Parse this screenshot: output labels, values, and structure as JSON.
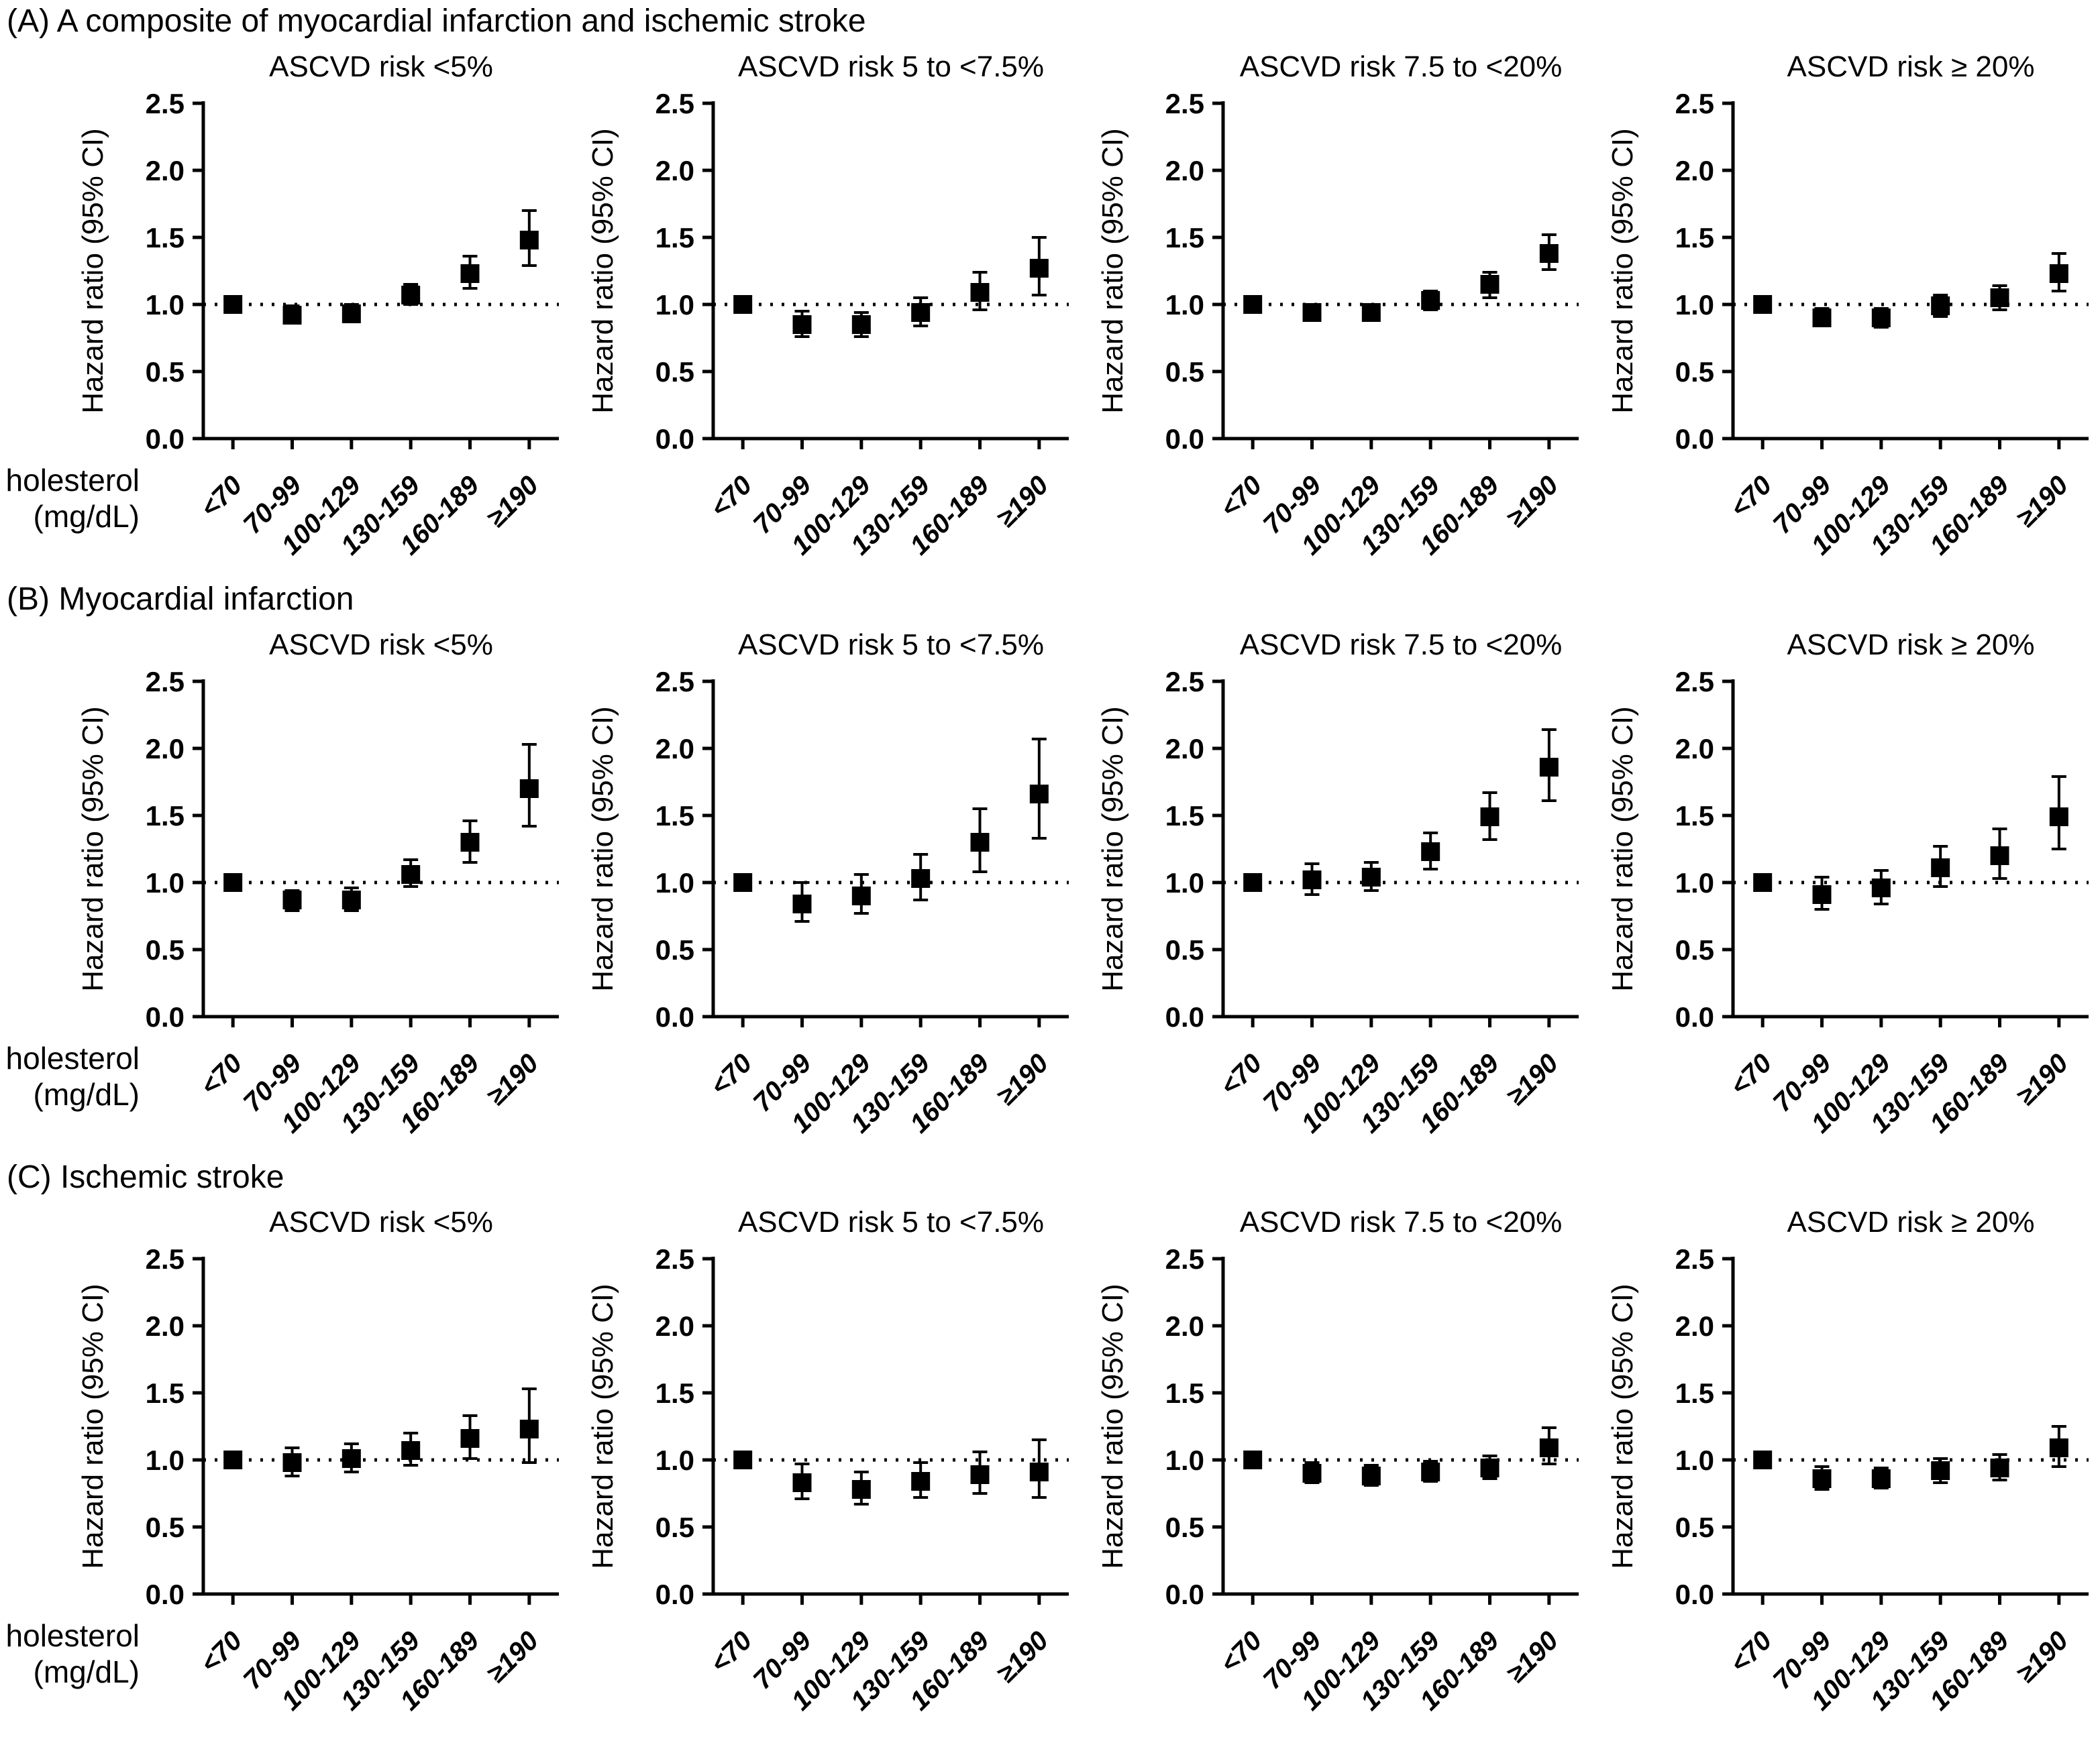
{
  "figure": {
    "sections": [
      {
        "label": "(A) A composite of myocardial infarction and ischemic stroke",
        "panels": [
          0,
          1,
          2,
          3
        ]
      },
      {
        "label": "(B) Myocardial infarction",
        "panels": [
          4,
          5,
          6,
          7
        ]
      },
      {
        "label": "(C) Ischemic stroke",
        "panels": [
          8,
          9,
          10,
          11
        ]
      }
    ]
  },
  "axes": {
    "ylabel": "Hazard ratio (95% CI)",
    "xlabel_line1": "LDL cholesterol",
    "xlabel_line2": "(mg/dL)",
    "categories": [
      "<70",
      "70-99",
      "100-129",
      "130-159",
      "160-189",
      "≥190"
    ],
    "yticks": [
      0,
      0.5,
      1.0,
      1.5,
      2.0,
      2.5
    ],
    "ytick_labels": [
      "0.0",
      "0.5",
      "1.0",
      "1.5",
      "2.0",
      "2.5"
    ],
    "ylim": [
      0,
      2.5
    ],
    "refline": 1.0,
    "marker_color": "#000000"
  },
  "chart_data": [
    {
      "type": "scatter",
      "section": "(A) A composite of myocardial infarction and ischemic stroke",
      "title": "ASCVD risk <5%",
      "categories": [
        "<70",
        "70-99",
        "100-129",
        "130-159",
        "160-189",
        "≥190"
      ],
      "hr": [
        1.0,
        0.92,
        0.93,
        1.07,
        1.23,
        1.48
      ],
      "ci_low": [
        1.0,
        0.86,
        0.87,
        1.0,
        1.12,
        1.29
      ],
      "ci_high": [
        1.0,
        0.99,
        1.0,
        1.15,
        1.36,
        1.7
      ],
      "xlabel": "LDL cholesterol (mg/dL)",
      "ylabel": "Hazard ratio (95% CI)",
      "ylim": [
        0,
        2.5
      ]
    },
    {
      "type": "scatter",
      "section": "(A) A composite of myocardial infarction and ischemic stroke",
      "title": "ASCVD risk 5 to <7.5%",
      "categories": [
        "<70",
        "70-99",
        "100-129",
        "130-159",
        "160-189",
        "≥190"
      ],
      "hr": [
        1.0,
        0.85,
        0.85,
        0.94,
        1.09,
        1.27
      ],
      "ci_low": [
        1.0,
        0.76,
        0.76,
        0.84,
        0.96,
        1.07
      ],
      "ci_high": [
        1.0,
        0.95,
        0.94,
        1.05,
        1.24,
        1.5
      ],
      "xlabel": "LDL cholesterol (mg/dL)",
      "ylabel": "Hazard ratio (95% CI)",
      "ylim": [
        0,
        2.5
      ]
    },
    {
      "type": "scatter",
      "section": "(A) A composite of myocardial infarction and ischemic stroke",
      "title": "ASCVD risk 7.5 to <20%",
      "categories": [
        "<70",
        "70-99",
        "100-129",
        "130-159",
        "160-189",
        "≥190"
      ],
      "hr": [
        1.0,
        0.94,
        0.94,
        1.03,
        1.15,
        1.38
      ],
      "ci_low": [
        1.0,
        0.88,
        0.88,
        0.96,
        1.05,
        1.26
      ],
      "ci_high": [
        1.0,
        1.0,
        1.0,
        1.1,
        1.24,
        1.52
      ],
      "xlabel": "LDL cholesterol (mg/dL)",
      "ylabel": "Hazard ratio (95% CI)",
      "ylim": [
        0,
        2.5
      ]
    },
    {
      "type": "scatter",
      "section": "(A) A composite of myocardial infarction and ischemic stroke",
      "title": "ASCVD risk ≥ 20%",
      "categories": [
        "<70",
        "70-99",
        "100-129",
        "130-159",
        "160-189",
        "≥190"
      ],
      "hr": [
        1.0,
        0.9,
        0.9,
        0.99,
        1.05,
        1.23
      ],
      "ci_low": [
        1.0,
        0.84,
        0.83,
        0.91,
        0.96,
        1.1
      ],
      "ci_high": [
        1.0,
        0.97,
        0.97,
        1.07,
        1.14,
        1.38
      ],
      "xlabel": "LDL cholesterol (mg/dL)",
      "ylabel": "Hazard ratio (95% CI)",
      "ylim": [
        0,
        2.5
      ]
    },
    {
      "type": "scatter",
      "section": "(B) Myocardial infarction",
      "title": "ASCVD risk <5%",
      "categories": [
        "<70",
        "70-99",
        "100-129",
        "130-159",
        "160-189",
        "≥190"
      ],
      "hr": [
        1.0,
        0.87,
        0.87,
        1.06,
        1.3,
        1.7
      ],
      "ci_low": [
        1.0,
        0.79,
        0.79,
        0.97,
        1.15,
        1.42
      ],
      "ci_high": [
        1.0,
        0.94,
        0.96,
        1.17,
        1.46,
        2.03
      ],
      "xlabel": "LDL cholesterol (mg/dL)",
      "ylabel": "Hazard ratio (95% CI)",
      "ylim": [
        0,
        2.5
      ]
    },
    {
      "type": "scatter",
      "section": "(B) Myocardial infarction",
      "title": "ASCVD risk 5 to <7.5%",
      "categories": [
        "<70",
        "70-99",
        "100-129",
        "130-159",
        "160-189",
        "≥190"
      ],
      "hr": [
        1.0,
        0.84,
        0.9,
        1.03,
        1.3,
        1.66
      ],
      "ci_low": [
        1.0,
        0.71,
        0.77,
        0.87,
        1.08,
        1.33
      ],
      "ci_high": [
        1.0,
        1.0,
        1.06,
        1.21,
        1.55,
        2.07
      ],
      "xlabel": "LDL cholesterol (mg/dL)",
      "ylabel": "Hazard ratio (95% CI)",
      "ylim": [
        0,
        2.5
      ]
    },
    {
      "type": "scatter",
      "section": "(B) Myocardial infarction",
      "title": "ASCVD risk 7.5 to <20%",
      "categories": [
        "<70",
        "70-99",
        "100-129",
        "130-159",
        "160-189",
        "≥190"
      ],
      "hr": [
        1.0,
        1.02,
        1.04,
        1.23,
        1.49,
        1.86
      ],
      "ci_low": [
        1.0,
        0.91,
        0.94,
        1.1,
        1.32,
        1.61
      ],
      "ci_high": [
        1.0,
        1.14,
        1.15,
        1.37,
        1.67,
        2.14
      ],
      "xlabel": "LDL cholesterol (mg/dL)",
      "ylabel": "Hazard ratio (95% CI)",
      "ylim": [
        0,
        2.5
      ]
    },
    {
      "type": "scatter",
      "section": "(B) Myocardial infarction",
      "title": "ASCVD risk ≥ 20%",
      "categories": [
        "<70",
        "70-99",
        "100-129",
        "130-159",
        "160-189",
        "≥190"
      ],
      "hr": [
        1.0,
        0.91,
        0.96,
        1.11,
        1.2,
        1.49
      ],
      "ci_low": [
        1.0,
        0.8,
        0.84,
        0.97,
        1.03,
        1.25
      ],
      "ci_high": [
        1.0,
        1.04,
        1.09,
        1.27,
        1.4,
        1.79
      ],
      "xlabel": "LDL cholesterol (mg/dL)",
      "ylabel": "Hazard ratio (95% CI)",
      "ylim": [
        0,
        2.5
      ]
    },
    {
      "type": "scatter",
      "section": "(C) Ischemic stroke",
      "title": "ASCVD risk <5%",
      "categories": [
        "<70",
        "70-99",
        "100-129",
        "130-159",
        "160-189",
        "≥190"
      ],
      "hr": [
        1.0,
        0.98,
        1.01,
        1.07,
        1.16,
        1.23
      ],
      "ci_low": [
        1.0,
        0.88,
        0.91,
        0.96,
        1.01,
        0.98
      ],
      "ci_high": [
        1.0,
        1.09,
        1.12,
        1.2,
        1.33,
        1.53
      ],
      "xlabel": "LDL cholesterol (mg/dL)",
      "ylabel": "Hazard ratio (95% CI)",
      "ylim": [
        0,
        2.5
      ]
    },
    {
      "type": "scatter",
      "section": "(C) Ischemic stroke",
      "title": "ASCVD risk 5 to <7.5%",
      "categories": [
        "<70",
        "70-99",
        "100-129",
        "130-159",
        "160-189",
        "≥190"
      ],
      "hr": [
        1.0,
        0.83,
        0.78,
        0.84,
        0.89,
        0.91
      ],
      "ci_low": [
        1.0,
        0.71,
        0.67,
        0.72,
        0.75,
        0.72
      ],
      "ci_high": [
        1.0,
        0.97,
        0.91,
        0.98,
        1.06,
        1.15
      ],
      "xlabel": "LDL cholesterol (mg/dL)",
      "ylabel": "Hazard ratio (95% CI)",
      "ylim": [
        0,
        2.5
      ]
    },
    {
      "type": "scatter",
      "section": "(C) Ischemic stroke",
      "title": "ASCVD risk 7.5 to <20%",
      "categories": [
        "<70",
        "70-99",
        "100-129",
        "130-159",
        "160-189",
        "≥190"
      ],
      "hr": [
        1.0,
        0.9,
        0.88,
        0.91,
        0.94,
        1.09
      ],
      "ci_low": [
        1.0,
        0.83,
        0.81,
        0.84,
        0.86,
        0.97
      ],
      "ci_high": [
        1.0,
        0.98,
        0.96,
        0.99,
        1.03,
        1.24
      ],
      "xlabel": "LDL cholesterol (mg/dL)",
      "ylabel": "Hazard ratio (95% CI)",
      "ylim": [
        0,
        2.5
      ]
    },
    {
      "type": "scatter",
      "section": "(C) Ischemic stroke",
      "title": "ASCVD risk ≥ 20%",
      "categories": [
        "<70",
        "70-99",
        "100-129",
        "130-159",
        "160-189",
        "≥190"
      ],
      "hr": [
        1.0,
        0.86,
        0.86,
        0.92,
        0.94,
        1.09
      ],
      "ci_low": [
        1.0,
        0.78,
        0.79,
        0.83,
        0.85,
        0.95
      ],
      "ci_high": [
        1.0,
        0.95,
        0.94,
        1.01,
        1.04,
        1.25
      ],
      "xlabel": "LDL cholesterol (mg/dL)",
      "ylabel": "Hazard ratio (95% CI)",
      "ylim": [
        0,
        2.5
      ]
    }
  ]
}
